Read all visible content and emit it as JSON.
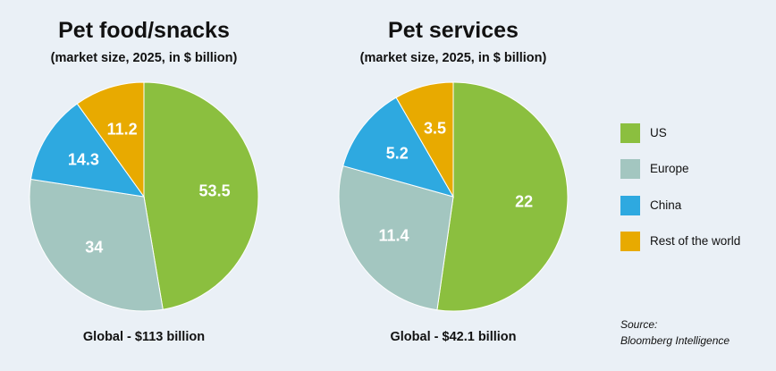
{
  "chart_data": [
    {
      "type": "pie",
      "title": "Pet food/snacks",
      "subtitle": "(market size, 2025, in $ billion)",
      "footer": "Global - $113 billion",
      "categories": [
        "US",
        "Europe",
        "China",
        "Rest of the world"
      ],
      "values": [
        53.5,
        34,
        14.3,
        11.2
      ],
      "labels": [
        "53.5",
        "34",
        "14.3",
        "11.2"
      ]
    },
    {
      "type": "pie",
      "title": "Pet services",
      "subtitle": "(market size, 2025, in $ billion)",
      "footer": "Global - $42.1 billion",
      "categories": [
        "US",
        "Europe",
        "China",
        "Rest of the world"
      ],
      "values": [
        22,
        11.4,
        5.2,
        3.5
      ],
      "labels": [
        "22",
        "11.4",
        "5.2",
        "3.5"
      ]
    }
  ],
  "legend": {
    "placement": "right",
    "items": [
      {
        "label": "US",
        "color": "#8bbf3f"
      },
      {
        "label": "Europe",
        "color": "#a3c6c0"
      },
      {
        "label": "China",
        "color": "#2ea9e0"
      },
      {
        "label": "Rest of the world",
        "color": "#e8aa00"
      }
    ]
  },
  "source": {
    "line1": "Source:",
    "line2": "Bloomberg Intelligence"
  }
}
